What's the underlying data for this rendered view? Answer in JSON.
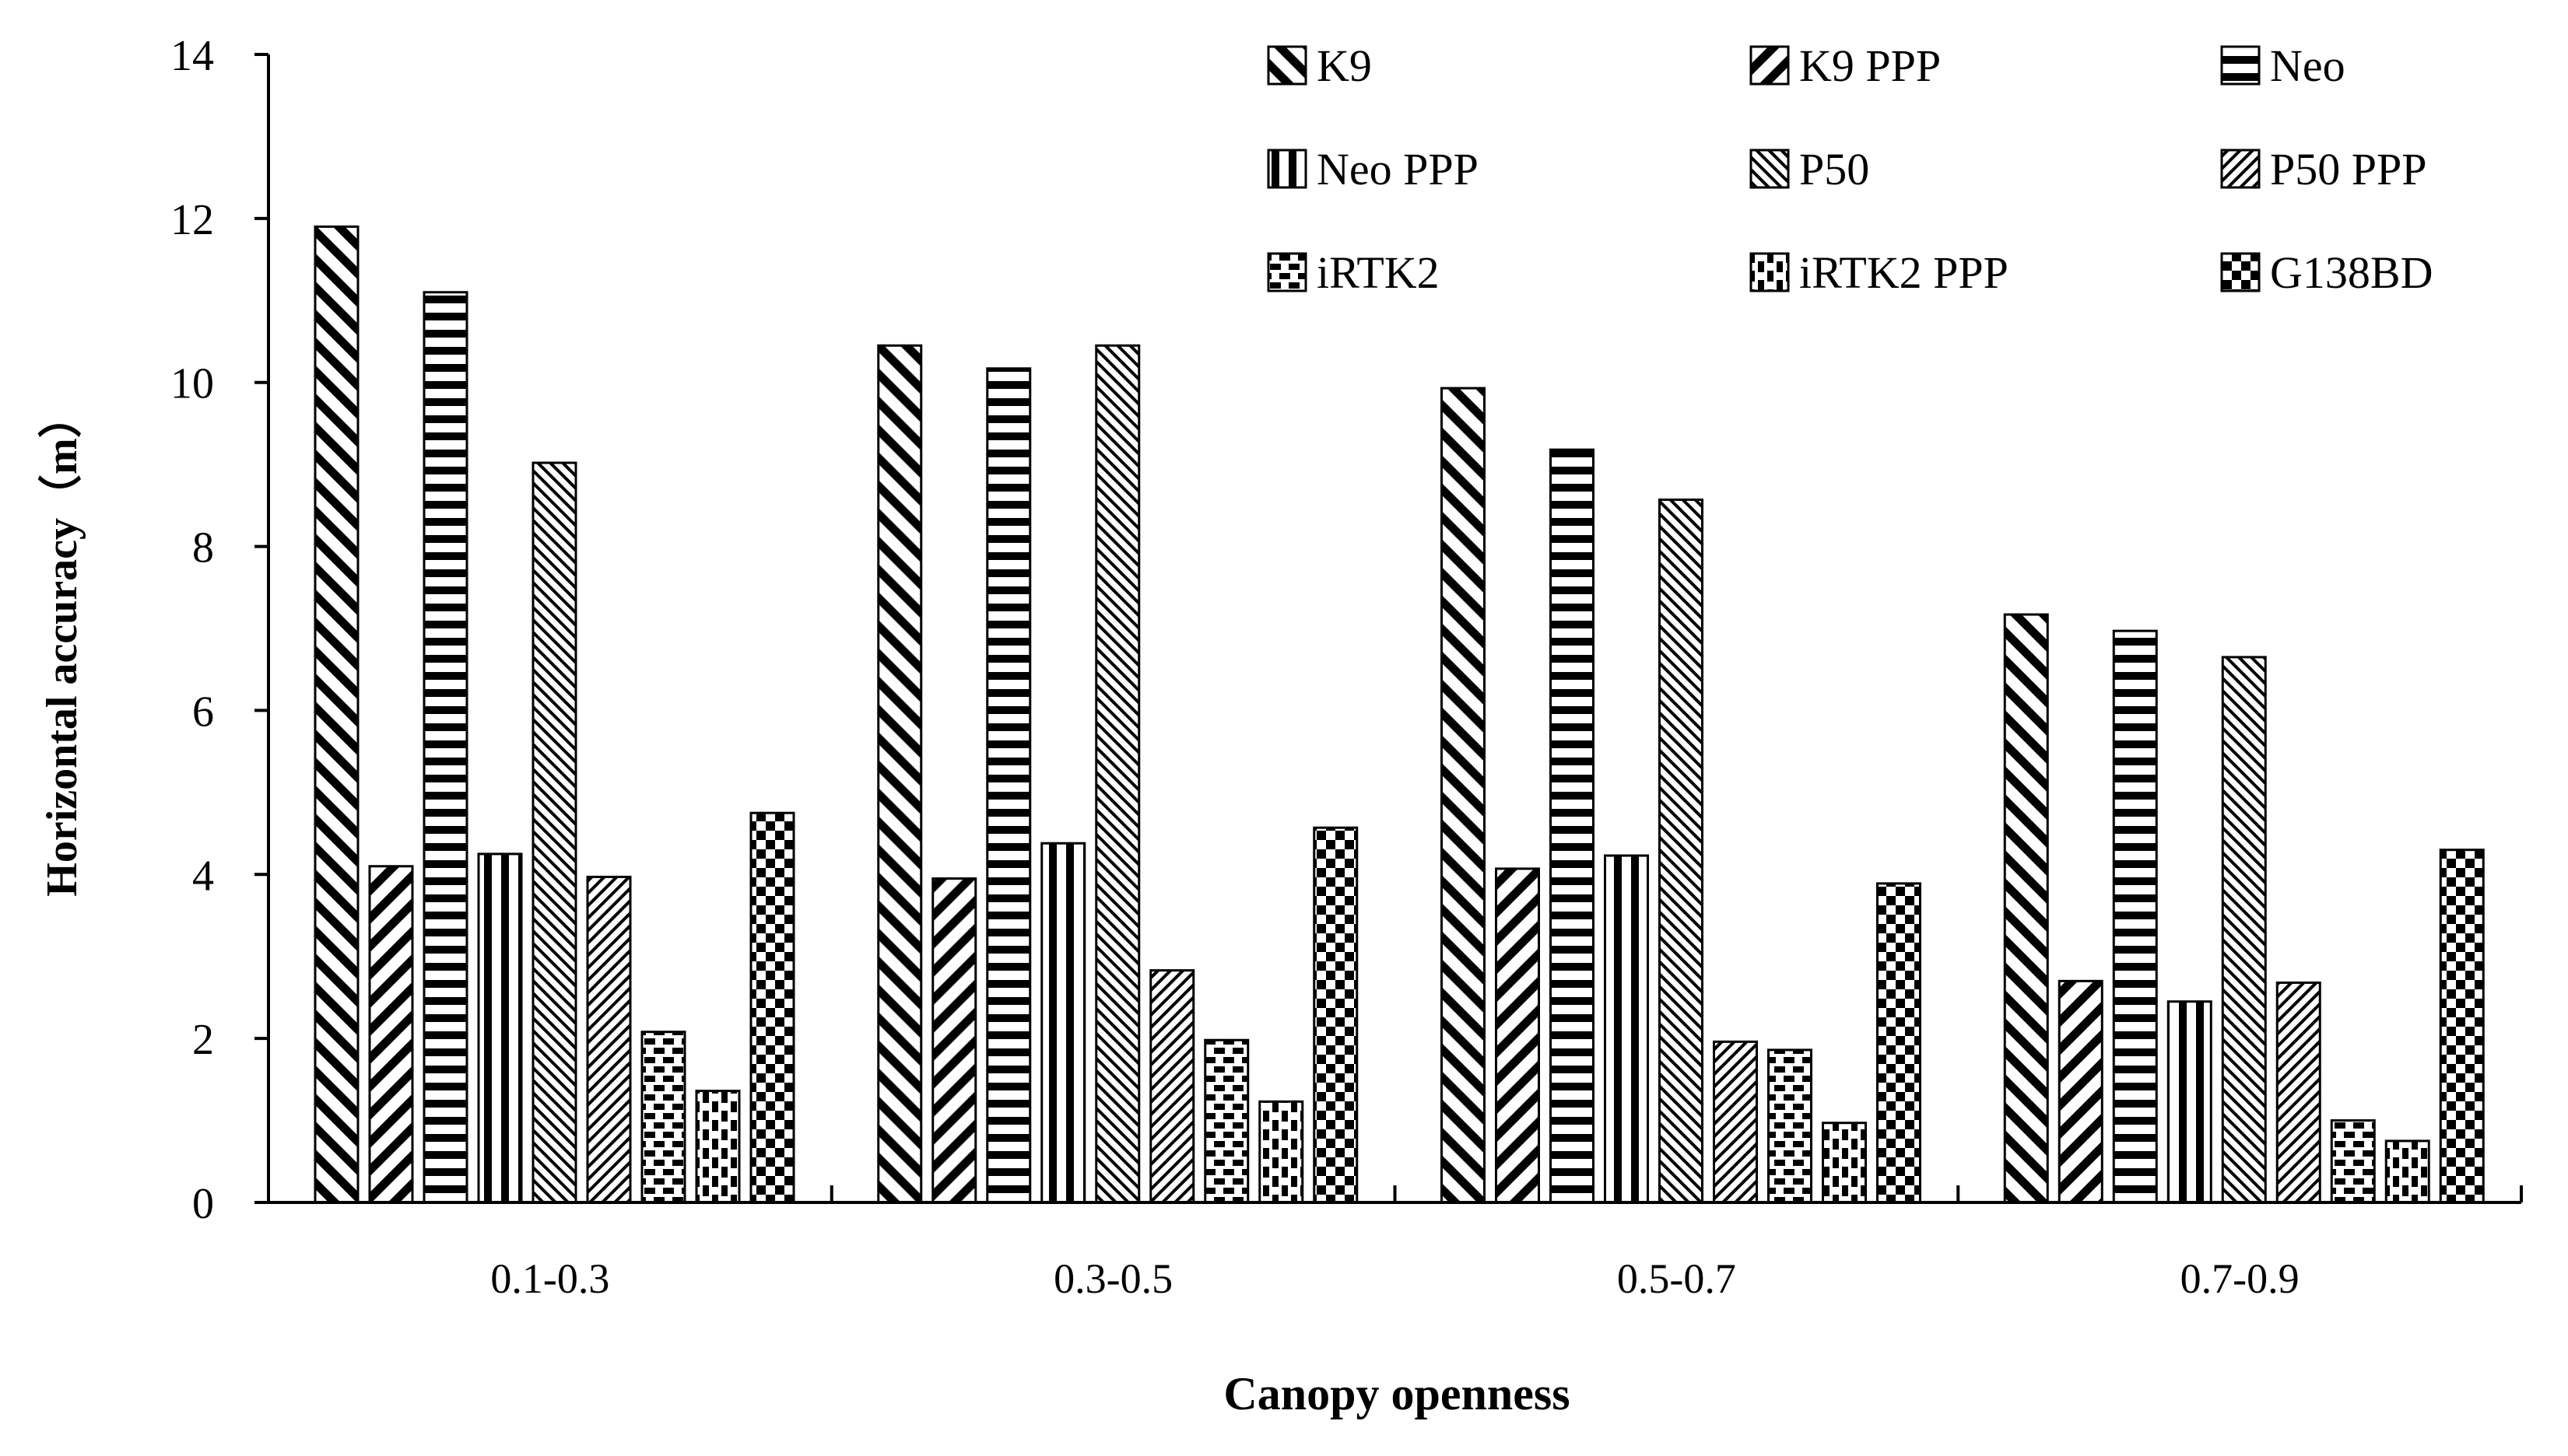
{
  "chart_data": {
    "type": "bar",
    "title": "",
    "xlabel": "Canopy openness",
    "ylabel": "Horizontal accuracy（m）",
    "ylim": [
      0,
      14
    ],
    "yticks": [
      0,
      2,
      4,
      6,
      8,
      10,
      12,
      14
    ],
    "categories": [
      "0.1-0.3",
      "0.3-0.5",
      "0.5-0.7",
      "0.7-0.9"
    ],
    "legend_position": "top-right",
    "grid": false,
    "series": [
      {
        "name": "K9",
        "pattern": "diag-back-wide",
        "values": [
          11.9,
          10.45,
          9.93,
          7.17
        ]
      },
      {
        "name": "K9 PPP",
        "pattern": "diag-fwd-wide",
        "values": [
          4.1,
          3.95,
          4.07,
          2.7
        ]
      },
      {
        "name": "Neo",
        "pattern": "horizontal",
        "values": [
          11.1,
          10.17,
          9.18,
          6.97
        ]
      },
      {
        "name": "Neo PPP",
        "pattern": "vertical",
        "values": [
          4.25,
          4.38,
          4.23,
          2.45
        ]
      },
      {
        "name": "P50",
        "pattern": "diag-back-narrow",
        "values": [
          9.02,
          10.45,
          8.57,
          6.65
        ]
      },
      {
        "name": "P50 PPP",
        "pattern": "diag-fwd-narrow",
        "values": [
          3.97,
          2.83,
          1.96,
          2.68
        ]
      },
      {
        "name": "iRTK2",
        "pattern": "dashed-horizontal",
        "values": [
          2.08,
          1.98,
          1.86,
          1.0
        ]
      },
      {
        "name": "iRTK2 PPP",
        "pattern": "dashed-vertical",
        "values": [
          1.36,
          1.23,
          0.97,
          0.75
        ]
      },
      {
        "name": "G138BD",
        "pattern": "checker",
        "values": [
          4.75,
          4.57,
          3.89,
          4.3
        ]
      }
    ]
  },
  "colors": {
    "ink": "#000000",
    "paper": "#ffffff"
  }
}
